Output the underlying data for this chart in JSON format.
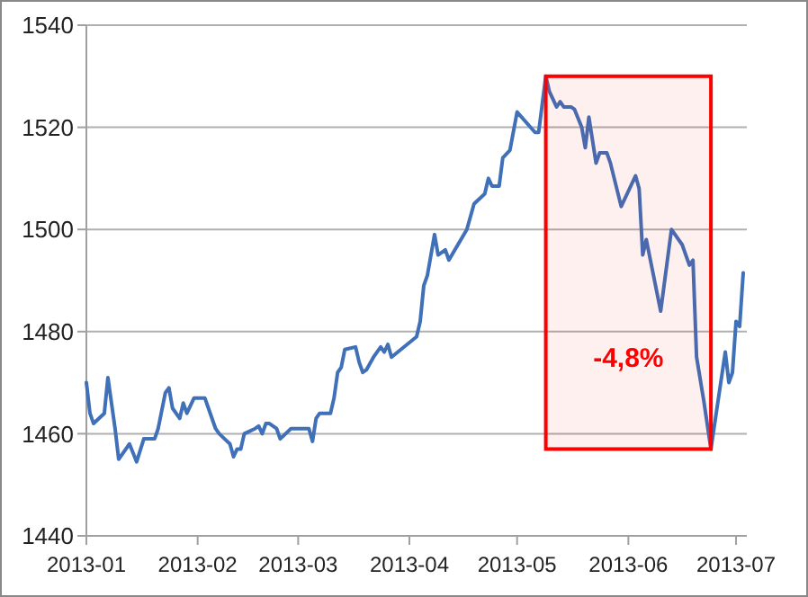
{
  "chart_data": {
    "type": "line",
    "x": [
      "2013-01-01",
      "2013-01-02",
      "2013-01-03",
      "2013-01-06",
      "2013-01-07",
      "2013-01-09",
      "2013-01-10",
      "2013-01-13",
      "2013-01-15",
      "2013-01-17",
      "2013-01-20",
      "2013-01-21",
      "2013-01-23",
      "2013-01-24",
      "2013-01-25",
      "2013-01-27",
      "2013-01-28",
      "2013-01-29",
      "2013-01-31",
      "2013-02-03",
      "2013-02-04",
      "2013-02-06",
      "2013-02-07",
      "2013-02-10",
      "2013-02-11",
      "2013-02-12",
      "2013-02-13",
      "2013-02-14",
      "2013-02-17",
      "2013-02-18",
      "2013-02-19",
      "2013-02-20",
      "2013-02-21",
      "2013-02-23",
      "2013-02-24",
      "2013-02-27",
      "2013-02-28",
      "2013-03-02",
      "2013-03-04",
      "2013-03-05",
      "2013-03-06",
      "2013-03-07",
      "2013-03-10",
      "2013-03-11",
      "2013-03-12",
      "2013-03-13",
      "2013-03-14",
      "2013-03-17",
      "2013-03-18",
      "2013-03-19",
      "2013-03-20",
      "2013-03-22",
      "2013-03-24",
      "2013-03-25",
      "2013-03-26",
      "2013-03-27",
      "2013-04-03",
      "2013-04-04",
      "2013-04-05",
      "2013-04-06",
      "2013-04-08",
      "2013-04-09",
      "2013-04-11",
      "2013-04-12",
      "2013-04-17",
      "2013-04-19",
      "2013-04-22",
      "2013-04-23",
      "2013-04-24",
      "2013-04-26",
      "2013-04-27",
      "2013-04-29",
      "2013-05-01",
      "2013-05-06",
      "2013-05-07",
      "2013-05-09",
      "2013-05-10",
      "2013-05-12",
      "2013-05-13",
      "2013-05-14",
      "2013-05-16",
      "2013-05-17",
      "2013-05-19",
      "2013-05-20",
      "2013-05-21",
      "2013-05-23",
      "2013-05-24",
      "2013-05-26",
      "2013-05-27",
      "2013-05-30",
      "2013-06-03",
      "2013-06-04",
      "2013-06-05",
      "2013-06-06",
      "2013-06-10",
      "2013-06-13",
      "2013-06-16",
      "2013-06-18",
      "2013-06-19",
      "2013-06-20",
      "2013-06-22",
      "2013-06-24",
      "2013-06-28",
      "2013-06-29",
      "2013-06-30",
      "2013-07-01",
      "2013-07-02",
      "2013-07-03"
    ],
    "series": [
      {
        "color": "#4071b8",
        "values": [
          1470,
          1464,
          1462,
          1464,
          1471,
          1461,
          1455,
          1458,
          1454.5,
          1459,
          1459,
          1461,
          1468,
          1469,
          1465,
          1463,
          1466,
          1464,
          1467,
          1467,
          1465,
          1461,
          1460,
          1458,
          1455.5,
          1457,
          1457,
          1460,
          1461,
          1461.5,
          1460,
          1462,
          1462,
          1461,
          1459,
          1461,
          1461,
          1461,
          1461,
          1458.5,
          1463,
          1464,
          1464,
          1467,
          1472,
          1473,
          1476.5,
          1477,
          1474,
          1472,
          1472.5,
          1475,
          1477,
          1476,
          1477.5,
          1475,
          1479,
          1482,
          1489,
          1491,
          1499,
          1495,
          1496,
          1494,
          1500,
          1505,
          1507,
          1510,
          1508.5,
          1508.5,
          1514,
          1515.5,
          1523,
          1519,
          1519,
          1530,
          1527,
          1524,
          1525,
          1524,
          1524,
          1523.5,
          1520,
          1516,
          1522,
          1513,
          1515,
          1515,
          1513,
          1504.5,
          1510.5,
          1508,
          1495,
          1498,
          1484,
          1500,
          1497,
          1493,
          1494,
          1475,
          1466.5,
          1457,
          1476,
          1470,
          1472,
          1482,
          1481,
          1491.5
        ]
      }
    ],
    "xlim": [
      "2013-01-01",
      "2013-07-04"
    ],
    "xticks": [
      {
        "value": "2013-01-01",
        "label": "2013-01"
      },
      {
        "value": "2013-02-01",
        "label": "2013-02"
      },
      {
        "value": "2013-03-01",
        "label": "2013-03"
      },
      {
        "value": "2013-04-01",
        "label": "2013-04"
      },
      {
        "value": "2013-05-01",
        "label": "2013-05"
      },
      {
        "value": "2013-06-01",
        "label": "2013-06"
      },
      {
        "value": "2013-07-01",
        "label": "2013-07"
      }
    ],
    "ylim": [
      1440,
      1540
    ],
    "yticks": [
      1440,
      1460,
      1480,
      1500,
      1520,
      1540
    ],
    "grid": "y",
    "marker": "none",
    "line_style": "solid",
    "bands": [
      {
        "axis": "x",
        "from": "2013-05-09",
        "to": "2013-06-24",
        "label": "-4,8%",
        "color": "#ff0000"
      }
    ]
  }
}
